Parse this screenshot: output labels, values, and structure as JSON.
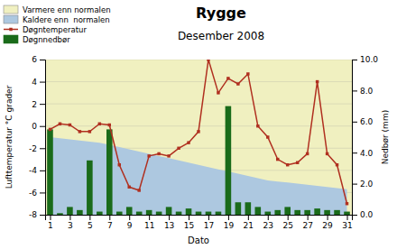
{
  "chart_data": {
    "type": "line",
    "title": "Rygge",
    "subtitle": "Desember 2008",
    "xlabel": "Dato",
    "ylabel": "Lufttemperatur °C grader",
    "y2label": "Nedbør (mm)",
    "x": [
      1,
      2,
      3,
      4,
      5,
      6,
      7,
      8,
      9,
      10,
      11,
      12,
      13,
      14,
      15,
      16,
      17,
      18,
      19,
      20,
      21,
      22,
      23,
      24,
      25,
      26,
      27,
      28,
      29,
      30,
      31
    ],
    "xlim": [
      0.5,
      31.5
    ],
    "xticks": [
      1,
      3,
      5,
      7,
      9,
      11,
      13,
      15,
      17,
      19,
      21,
      23,
      25,
      27,
      29,
      31
    ],
    "ylim": [
      -8.0,
      6.0
    ],
    "yticks": [
      -8,
      -6,
      -4,
      -2,
      0,
      2,
      4,
      6
    ],
    "y2lim": [
      0.0,
      10.0
    ],
    "y2ticks": [
      {
        "value": 0.0,
        "label": "0.0"
      },
      {
        "value": 2.0,
        "label": "2.0"
      },
      {
        "value": 4.0,
        "label": "4.0"
      },
      {
        "value": 6.0,
        "label": "6.0"
      },
      {
        "value": 8.0,
        "label": "8.0"
      },
      {
        "value": 10.0,
        "label": "10.0"
      }
    ],
    "grid": true,
    "legend": "upper left",
    "series": [
      {
        "name": "Varmere enn normalen",
        "type": "background",
        "color": "#f0f0c0"
      },
      {
        "name": "Kaldere enn  normalen",
        "type": "area",
        "color": "#adc8e0",
        "values": [
          -1.0,
          -1.1,
          -1.2,
          -1.3,
          -1.4,
          -1.5,
          -1.7,
          -1.9,
          -2.1,
          -2.3,
          -2.5,
          -2.7,
          -2.9,
          -3.1,
          -3.3,
          -3.5,
          -3.7,
          -3.9,
          -4.1,
          -4.3,
          -4.5,
          -4.7,
          -4.9,
          -5.0,
          -5.1,
          -5.2,
          -5.3,
          -5.4,
          -5.5,
          -5.6,
          -5.7
        ]
      },
      {
        "name": "Døgntemperatur",
        "type": "line",
        "color": "#b03020",
        "marker": "square",
        "values": [
          -0.3,
          0.2,
          0.1,
          -0.5,
          -0.5,
          0.2,
          0.1,
          -3.5,
          -5.5,
          -5.8,
          -2.7,
          -2.5,
          -2.7,
          -2.0,
          -1.5,
          -0.5,
          6.0,
          3.0,
          4.3,
          3.8,
          4.7,
          0.0,
          -1.0,
          -3.0,
          -3.5,
          -3.3,
          -2.5,
          4.0,
          -2.5,
          -3.5,
          -7.0
        ]
      },
      {
        "name": "Døgnnedbør",
        "type": "bar",
        "axis": "y2",
        "color": "#1a6b1a",
        "values": [
          5.5,
          0.1,
          0.5,
          0.3,
          3.5,
          0.2,
          5.5,
          0.2,
          0.5,
          0.2,
          0.3,
          0.2,
          0.5,
          0.2,
          0.4,
          0.2,
          0.2,
          0.2,
          7.0,
          0.8,
          0.8,
          0.5,
          0.2,
          0.3,
          0.5,
          0.3,
          0.3,
          0.4,
          0.3,
          0.3,
          0.2
        ]
      }
    ]
  }
}
